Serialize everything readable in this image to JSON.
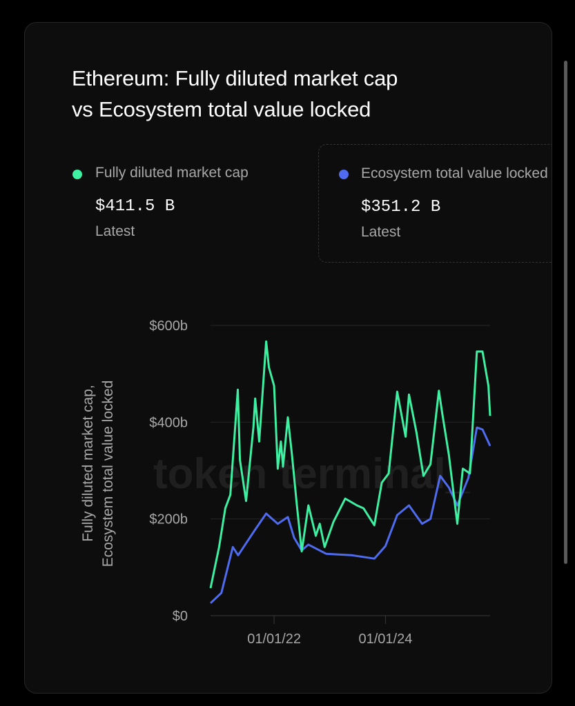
{
  "title_line1": "Ethereum: Fully diluted market cap",
  "title_line2": "vs Ecosystem total value locked",
  "legend": [
    {
      "name": "Fully diluted market cap",
      "value": "$411.5 B",
      "sub": "Latest",
      "color": "#3df0a2"
    },
    {
      "name": "Ecosystem total value locked",
      "value": "$351.2 B",
      "sub": "Latest",
      "color": "#4f6cf0"
    }
  ],
  "watermark": "token terminal_",
  "chart_data": {
    "type": "line",
    "title": "Ethereum: Fully diluted market cap vs Ecosystem total value locked",
    "ylabel_line1": "Fully diluted market cap,",
    "ylabel_line2": "Ecosystem total value locked",
    "ylim": [
      0,
      600
    ],
    "yticks": [
      0,
      200,
      400,
      600
    ],
    "ytick_labels": [
      "$0",
      "$200b",
      "$400b",
      "$600b"
    ],
    "xlim": [
      "2020-11-10",
      "2025-11-17"
    ],
    "xticks": [
      "2022-01-01",
      "2024-01-01"
    ],
    "xtick_labels": [
      "01/01/22",
      "01/01/24"
    ],
    "grid": true,
    "series": [
      {
        "name": "Fully diluted market cap",
        "color": "#3df0a2",
        "points": [
          [
            "2020-11-10",
            57
          ],
          [
            "2021-01-05",
            142
          ],
          [
            "2021-02-15",
            222
          ],
          [
            "2021-03-20",
            250
          ],
          [
            "2021-05-08",
            467
          ],
          [
            "2021-05-22",
            322
          ],
          [
            "2021-07-01",
            237
          ],
          [
            "2021-08-18",
            389
          ],
          [
            "2021-08-30",
            449
          ],
          [
            "2021-09-25",
            360
          ],
          [
            "2021-11-10",
            567
          ],
          [
            "2021-11-28",
            513
          ],
          [
            "2022-01-01",
            475
          ],
          [
            "2022-01-25",
            304
          ],
          [
            "2022-02-14",
            360
          ],
          [
            "2022-02-28",
            308
          ],
          [
            "2022-04-01",
            410
          ],
          [
            "2022-04-28",
            332
          ],
          [
            "2022-05-30",
            228
          ],
          [
            "2022-07-01",
            133
          ],
          [
            "2022-08-14",
            228
          ],
          [
            "2022-10-01",
            165
          ],
          [
            "2022-10-27",
            190
          ],
          [
            "2022-11-28",
            142
          ],
          [
            "2023-01-25",
            194
          ],
          [
            "2023-04-12",
            242
          ],
          [
            "2023-06-28",
            228
          ],
          [
            "2023-08-10",
            222
          ],
          [
            "2023-10-20",
            187
          ],
          [
            "2023-12-08",
            275
          ],
          [
            "2024-01-22",
            294
          ],
          [
            "2024-03-18",
            463
          ],
          [
            "2024-05-12",
            370
          ],
          [
            "2024-06-03",
            457
          ],
          [
            "2024-07-22",
            379
          ],
          [
            "2024-09-06",
            289
          ],
          [
            "2024-10-22",
            313
          ],
          [
            "2024-12-16",
            465
          ],
          [
            "2025-01-08",
            417
          ],
          [
            "2025-02-20",
            332
          ],
          [
            "2025-04-16",
            190
          ],
          [
            "2025-05-22",
            304
          ],
          [
            "2025-07-08",
            294
          ],
          [
            "2025-08-22",
            546
          ],
          [
            "2025-09-28",
            546
          ],
          [
            "2025-11-06",
            475
          ],
          [
            "2025-11-17",
            413
          ]
        ]
      },
      {
        "name": "Ecosystem total value locked",
        "color": "#4f6cf0",
        "points": [
          [
            "2020-11-10",
            26
          ],
          [
            "2021-01-20",
            47
          ],
          [
            "2021-04-05",
            142
          ],
          [
            "2021-05-10",
            125
          ],
          [
            "2021-08-30",
            178
          ],
          [
            "2021-11-10",
            211
          ],
          [
            "2022-01-25",
            190
          ],
          [
            "2022-04-01",
            204
          ],
          [
            "2022-05-12",
            161
          ],
          [
            "2022-07-01",
            135
          ],
          [
            "2022-08-14",
            147
          ],
          [
            "2022-12-08",
            128
          ],
          [
            "2023-05-25",
            125
          ],
          [
            "2023-10-20",
            118
          ],
          [
            "2024-01-01",
            144
          ],
          [
            "2024-03-18",
            208
          ],
          [
            "2024-06-03",
            228
          ],
          [
            "2024-08-28",
            190
          ],
          [
            "2024-10-22",
            200
          ],
          [
            "2024-12-25",
            289
          ],
          [
            "2025-02-20",
            265
          ],
          [
            "2025-04-16",
            228
          ],
          [
            "2025-06-28",
            285
          ],
          [
            "2025-08-22",
            389
          ],
          [
            "2025-09-28",
            385
          ],
          [
            "2025-11-17",
            351
          ]
        ]
      }
    ]
  }
}
